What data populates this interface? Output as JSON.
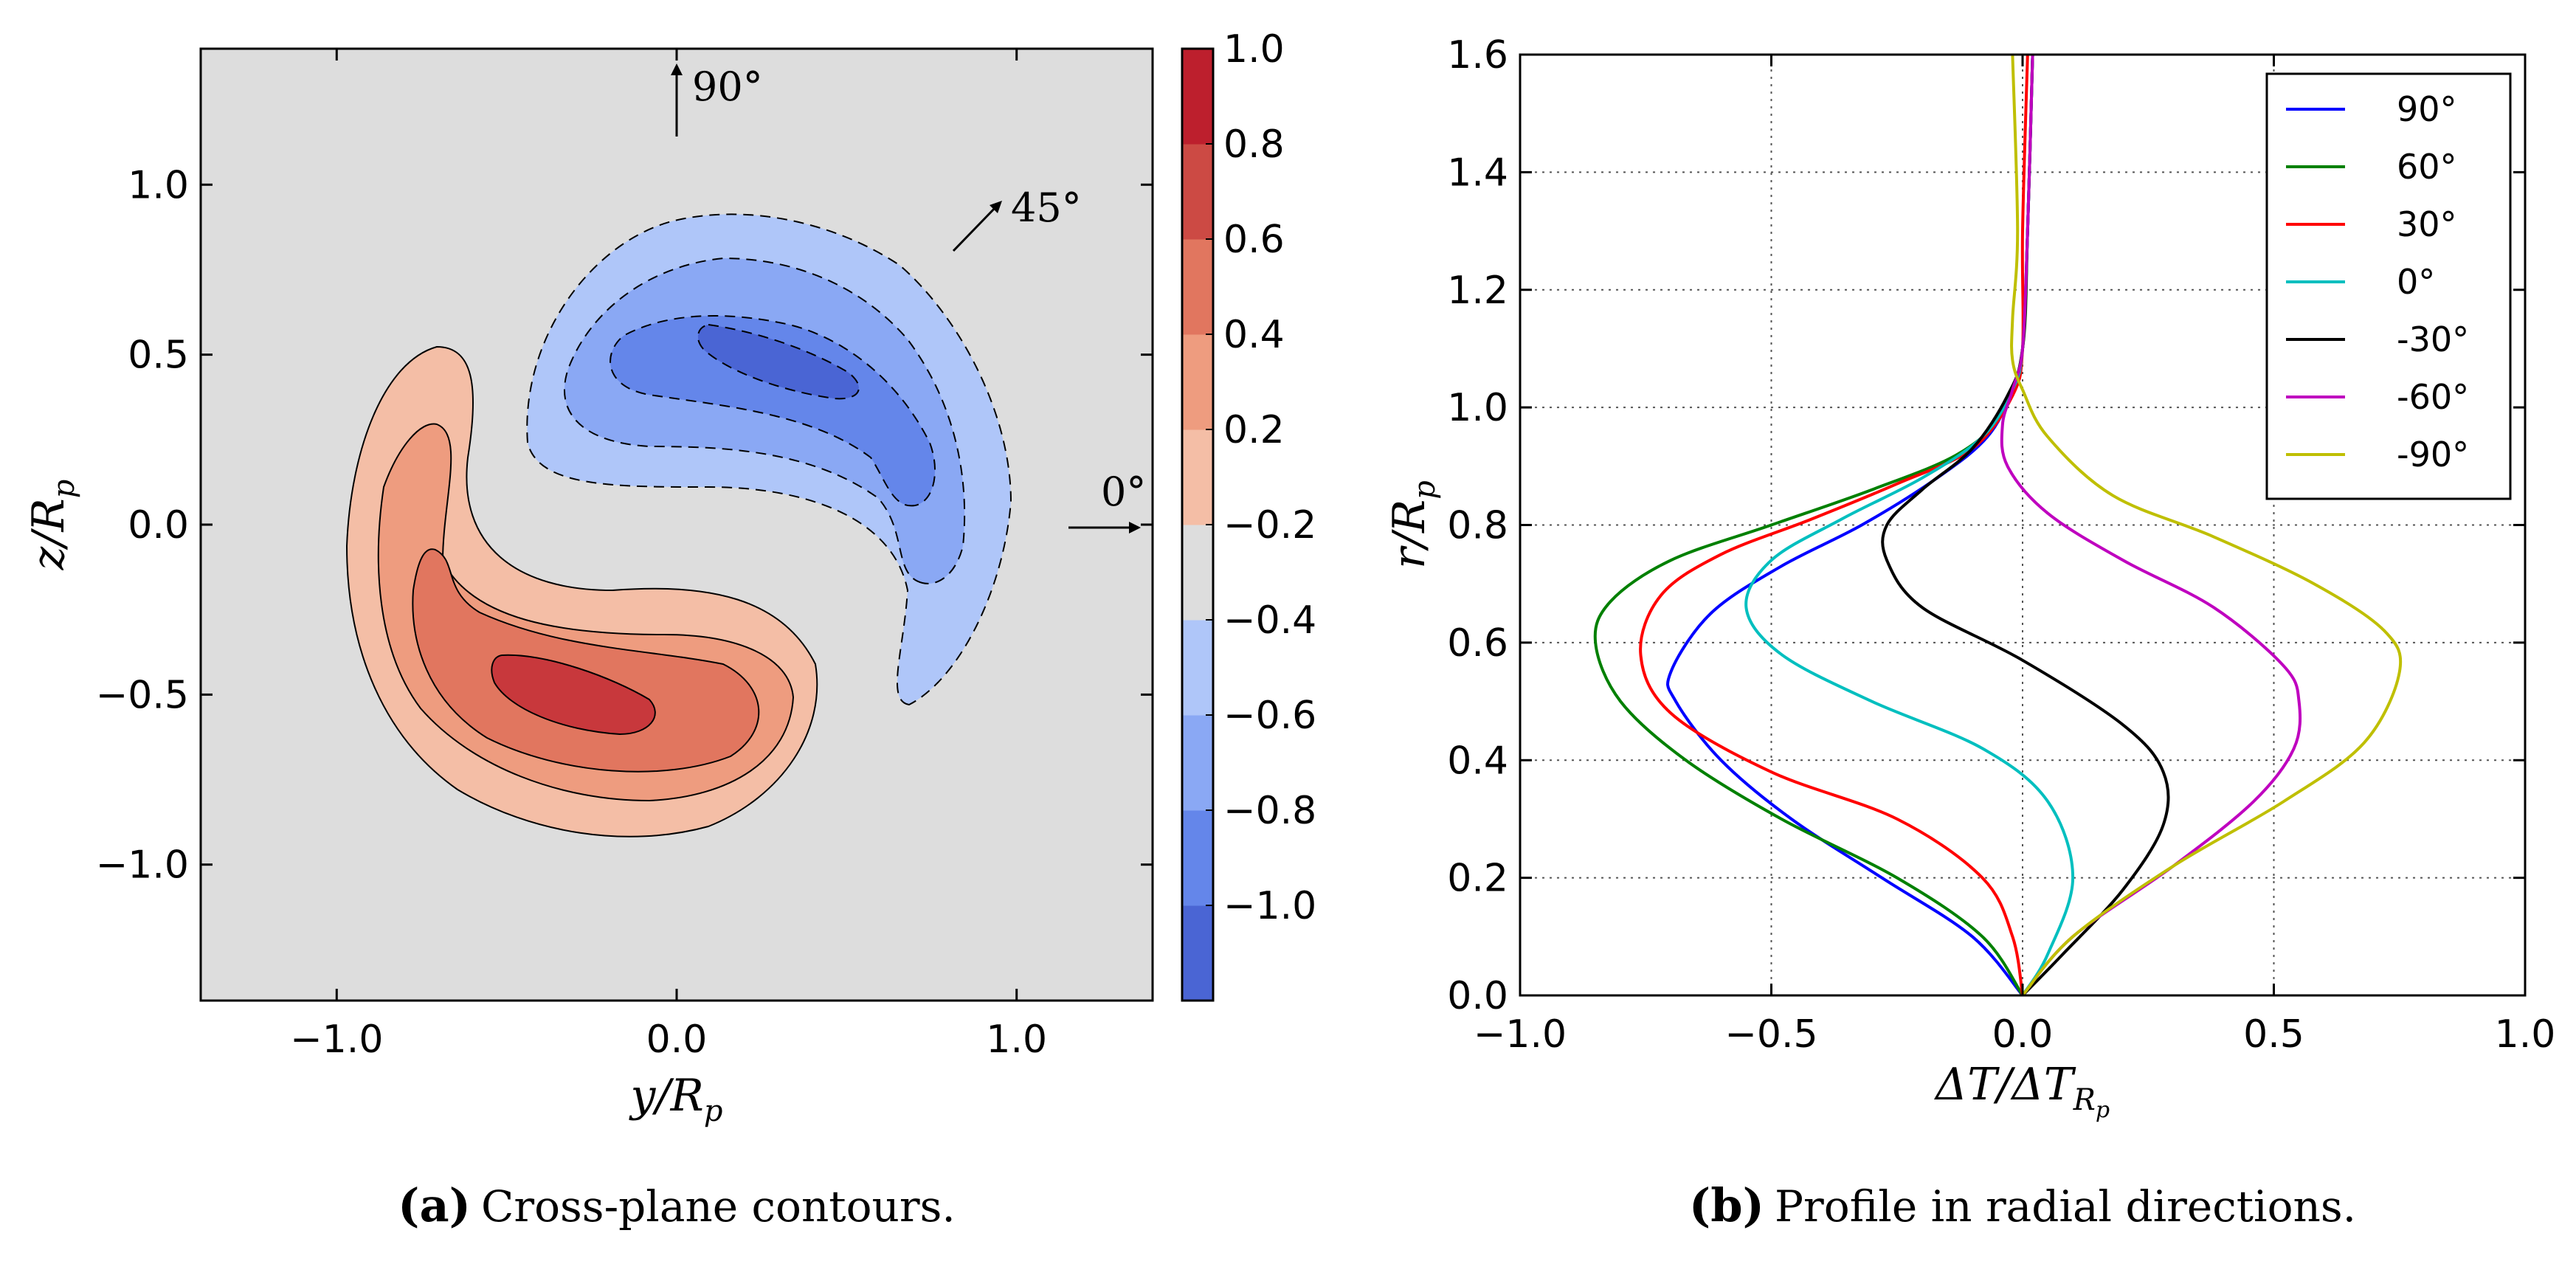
{
  "chart_data": [
    {
      "type": "heatmap",
      "title": "",
      "xlabel": "y/R_p",
      "ylabel": "z/R_p",
      "xlim": [
        -1.4,
        1.4
      ],
      "ylim": [
        -1.4,
        1.4
      ],
      "x_ticks": [
        "−1.0",
        "0.0",
        "1.0"
      ],
      "y_ticks": [
        "1.0",
        "0.5",
        "0.0",
        "−0.5",
        "−1.0"
      ],
      "colorbar_ticks": [
        "1.0",
        "0.8",
        "0.6",
        "0.4",
        "0.2",
        "−0.2",
        "−0.4",
        "−0.6",
        "−0.8",
        "−1.0"
      ],
      "colorbar_levels": [
        -1.0,
        -0.8,
        -0.6,
        -0.4,
        -0.2,
        0.2,
        0.4,
        0.6,
        0.8,
        1.0
      ],
      "colorbar_colors": [
        "#4a65d4",
        "#6486ea",
        "#8aa8f4",
        "#afc6f9",
        "#dddddd",
        "#f4bea6",
        "#ee9c7f",
        "#e1765f",
        "#cc4a44",
        "#bd1f2d"
      ],
      "background_color": "#dddddd",
      "direction_annotations": [
        "90°",
        "45°",
        "0°"
      ],
      "caption_label": "(a)",
      "caption_text": "Cross-plane contours."
    },
    {
      "type": "line",
      "title": "",
      "xlabel": "ΔT/ΔT_{R_p}",
      "ylabel": "r/R_p",
      "xlim": [
        -1.0,
        1.0
      ],
      "ylim": [
        0.0,
        1.6
      ],
      "grid": true,
      "legend_position": "top-right",
      "x_ticks": [
        "−1.0",
        "−0.5",
        "0.0",
        "0.5",
        "1.0"
      ],
      "y_ticks": [
        "1.6",
        "1.4",
        "1.2",
        "1.0",
        "0.8",
        "0.6",
        "0.4",
        "0.2",
        "0.0"
      ],
      "series": [
        {
          "name": "90°",
          "color": "#0000ff",
          "x": [
            0,
            -0.1,
            -0.28,
            -0.46,
            -0.6,
            -0.69,
            -0.7,
            -0.62,
            -0.48,
            -0.32,
            -0.17,
            -0.07,
            -0.02,
            0,
            0.01,
            0.02
          ],
          "y": [
            0,
            0.1,
            0.2,
            0.3,
            0.4,
            0.5,
            0.55,
            0.65,
            0.73,
            0.8,
            0.88,
            0.95,
            1.03,
            1.1,
            1.3,
            1.6
          ]
        },
        {
          "name": "60°",
          "color": "#008000",
          "x": [
            0,
            -0.08,
            -0.25,
            -0.48,
            -0.67,
            -0.8,
            -0.85,
            -0.82,
            -0.7,
            -0.5,
            -0.3,
            -0.13,
            -0.04,
            0,
            0.01,
            0.02
          ],
          "y": [
            0,
            0.1,
            0.2,
            0.3,
            0.4,
            0.5,
            0.6,
            0.67,
            0.74,
            0.8,
            0.86,
            0.92,
            0.99,
            1.1,
            1.3,
            1.6
          ]
        },
        {
          "name": "30°",
          "color": "#ff0000",
          "x": [
            0,
            -0.02,
            -0.08,
            -0.25,
            -0.5,
            -0.7,
            -0.76,
            -0.72,
            -0.6,
            -0.42,
            -0.25,
            -0.1,
            -0.02,
            0,
            0,
            0.01
          ],
          "y": [
            0,
            0.1,
            0.2,
            0.3,
            0.38,
            0.48,
            0.58,
            0.68,
            0.75,
            0.81,
            0.87,
            0.93,
            1.02,
            1.1,
            1.3,
            1.6
          ]
        },
        {
          "name": "0°",
          "color": "#00bfbf",
          "x": [
            0,
            0.05,
            0.1,
            0.05,
            -0.08,
            -0.3,
            -0.48,
            -0.55,
            -0.5,
            -0.36,
            -0.2,
            -0.08,
            -0.02,
            0,
            0.01,
            0.02
          ],
          "y": [
            0,
            0.07,
            0.2,
            0.33,
            0.42,
            0.5,
            0.58,
            0.66,
            0.74,
            0.81,
            0.88,
            0.95,
            1.03,
            1.1,
            1.3,
            1.6
          ]
        },
        {
          "name": "-30°",
          "color": "#000000",
          "x": [
            0,
            0.08,
            0.2,
            0.28,
            0.28,
            0.2,
            0.0,
            -0.2,
            -0.27,
            -0.27,
            -0.2,
            -0.1,
            -0.03,
            0,
            0.01,
            0.02
          ],
          "y": [
            0,
            0.07,
            0.18,
            0.29,
            0.38,
            0.46,
            0.57,
            0.66,
            0.74,
            0.8,
            0.86,
            0.93,
            1.02,
            1.1,
            1.3,
            1.6
          ]
        },
        {
          "name": "-60°",
          "color": "#bf00bf",
          "x": [
            0,
            0.1,
            0.3,
            0.46,
            0.54,
            0.55,
            0.52,
            0.38,
            0.2,
            0.05,
            -0.03,
            -0.04,
            -0.02,
            0,
            0.01,
            0.02
          ],
          "y": [
            0,
            0.1,
            0.22,
            0.33,
            0.42,
            0.5,
            0.56,
            0.66,
            0.74,
            0.82,
            0.9,
            0.97,
            1.03,
            1.1,
            1.3,
            1.6
          ]
        },
        {
          "name": "-90°",
          "color": "#bfbf00",
          "x": [
            0,
            0.1,
            0.3,
            0.52,
            0.68,
            0.75,
            0.72,
            0.58,
            0.38,
            0.18,
            0.05,
            0.0,
            -0.02,
            -0.02,
            -0.01,
            -0.02
          ],
          "y": [
            0,
            0.1,
            0.22,
            0.33,
            0.43,
            0.55,
            0.62,
            0.7,
            0.78,
            0.85,
            0.95,
            1.03,
            1.08,
            1.15,
            1.3,
            1.6
          ]
        }
      ],
      "caption_label": "(b)",
      "caption_text": "Profile in radial directions."
    }
  ]
}
